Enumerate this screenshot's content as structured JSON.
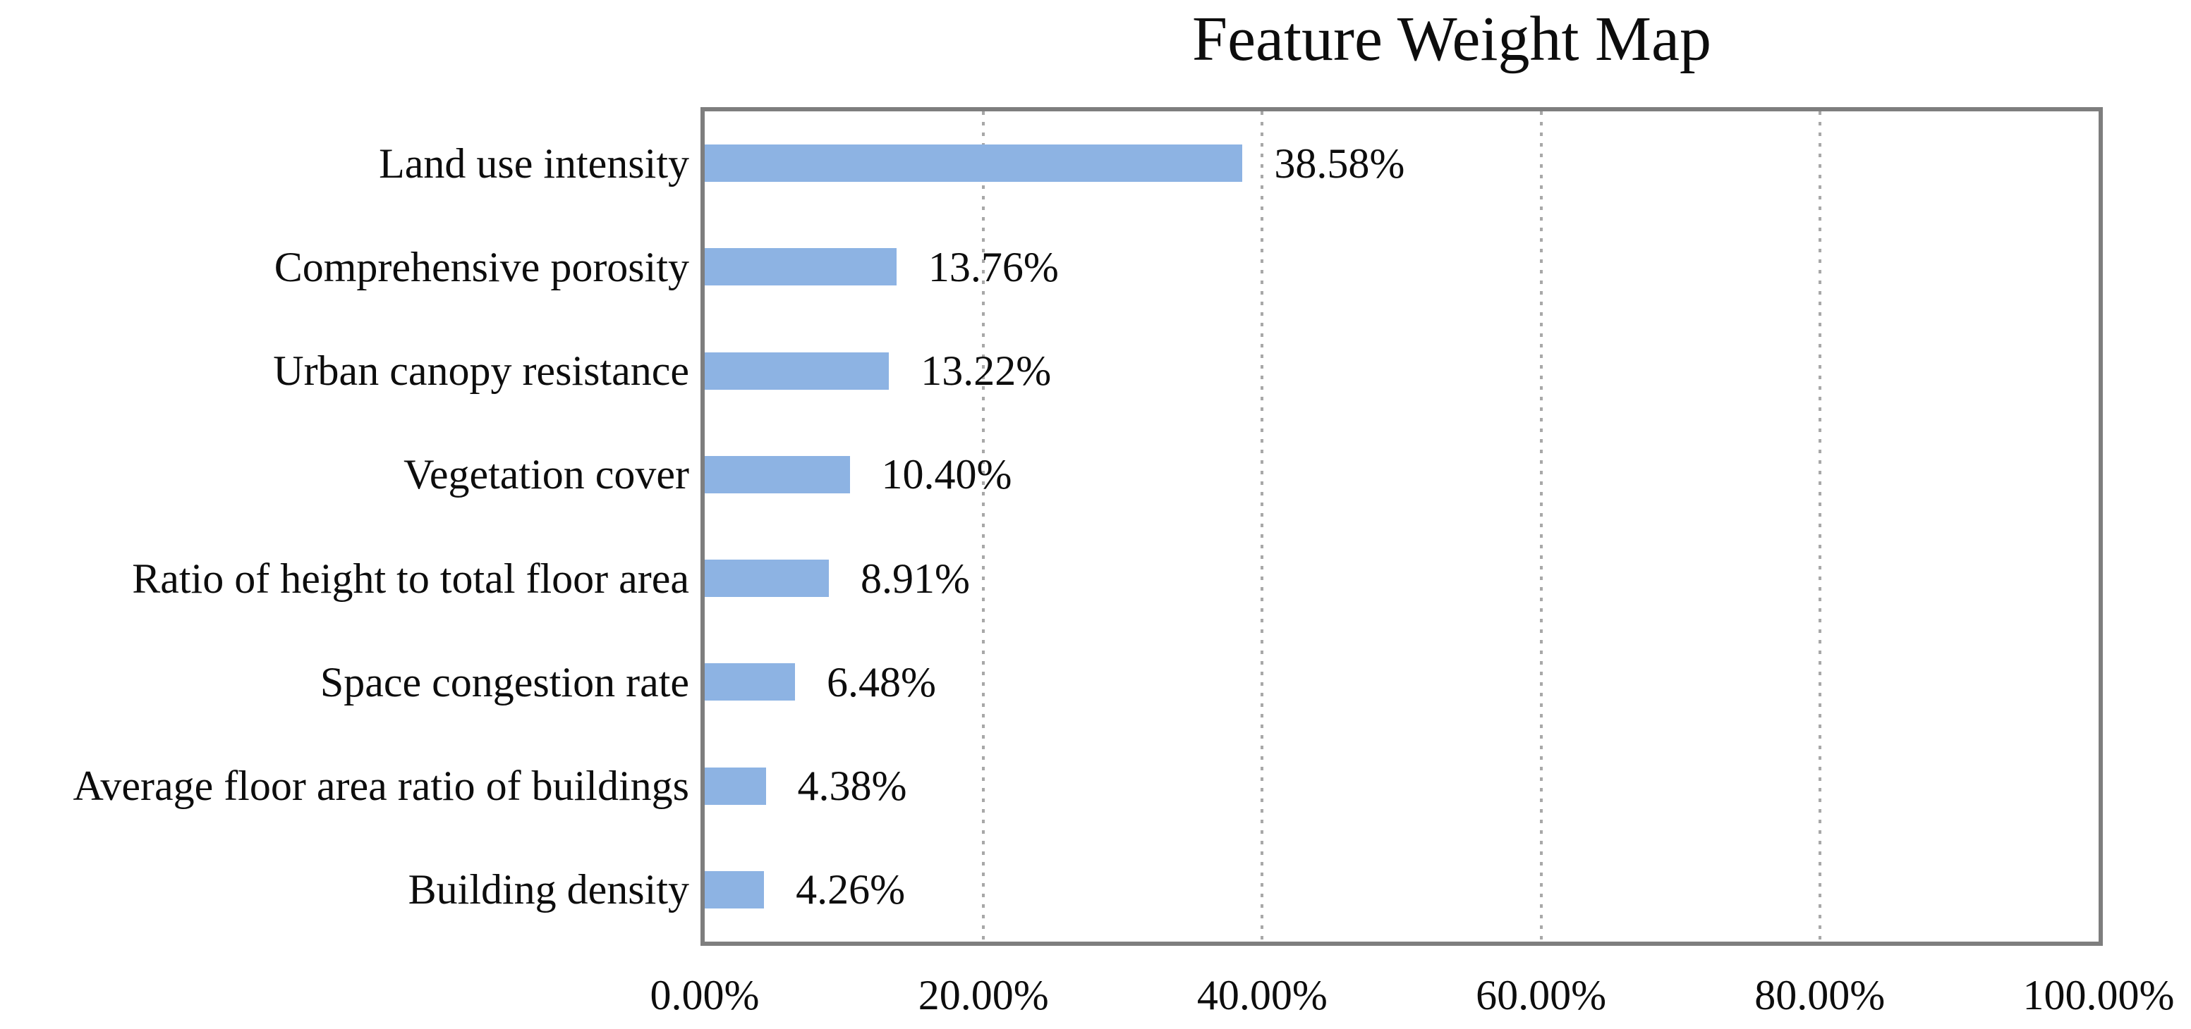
{
  "chart_data": {
    "type": "bar",
    "orientation": "horizontal",
    "title": "Feature Weight Map",
    "categories": [
      "Land use intensity",
      "Comprehensive porosity",
      "Urban canopy resistance",
      "Vegetation cover",
      "Ratio of height to total floor area",
      "Space congestion rate",
      "Average floor area ratio of buildings",
      "Building density"
    ],
    "values": [
      38.58,
      13.76,
      13.22,
      10.4,
      8.91,
      6.48,
      4.38,
      4.26
    ],
    "value_labels": [
      "38.58%",
      "13.76%",
      "13.22%",
      "10.40%",
      "8.91%",
      "6.48%",
      "4.38%",
      "4.26%"
    ],
    "x_ticks": [
      "0.00%",
      "20.00%",
      "40.00%",
      "60.00%",
      "80.00%",
      "100.00%"
    ],
    "xlim": [
      0,
      100
    ],
    "grid": "vertical dotted lines every 20%",
    "legend": "none",
    "colors": {
      "bar_fill": "#8db3e3",
      "plot_border": "#7e7e7e",
      "gridline": "#a8a8a8",
      "text": "#0d0d0d"
    }
  }
}
